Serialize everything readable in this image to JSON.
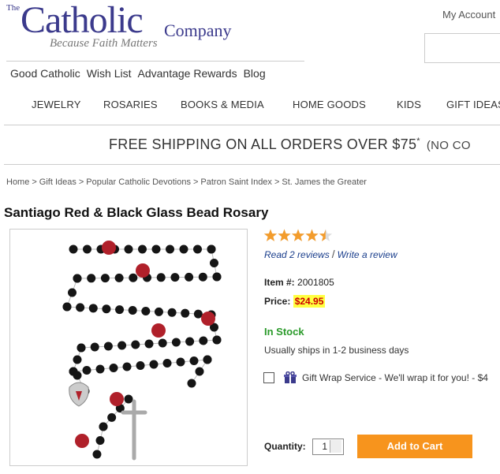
{
  "header": {
    "logo_prefix": "The",
    "logo_main": "Catholic",
    "logo_suffix": "Company",
    "tagline": "Because Faith Matters",
    "account": "My Account",
    "links": [
      "Good Catholic",
      "Wish List",
      "Advantage Rewards",
      "Blog"
    ],
    "nav": [
      "JEWELRY",
      "ROSARIES",
      "BOOKS & MEDIA",
      "HOME GOODS",
      "KIDS",
      "GIFT IDEAS"
    ]
  },
  "banner": {
    "text": "FREE SHIPPING ON ALL ORDERS OVER $75",
    "mark": "*",
    "note": "(NO CO"
  },
  "breadcrumb": {
    "separator": ">",
    "items": [
      "Home",
      "Gift Ideas",
      "Popular Catholic Devotions",
      "Patron Saint Index",
      "St. James the Greater"
    ]
  },
  "product": {
    "title": "Santiago Red & Black Glass Bead Rosary",
    "rating": 4.5,
    "rating_max": 5,
    "read_reviews": "Read 2 reviews",
    "review_sep": "/",
    "write_review": "Write a review",
    "item_label": "Item #:",
    "item_number": "2001805",
    "price_label": "Price:",
    "price": "$24.95",
    "stock": "In Stock",
    "ships": "Usually ships in 1-2 business days",
    "gift_wrap": "Gift Wrap Service - We'll wrap it for you! - $4",
    "quantity_label": "Quantity:",
    "quantity": "1",
    "add_to_cart": "Add to Cart"
  }
}
